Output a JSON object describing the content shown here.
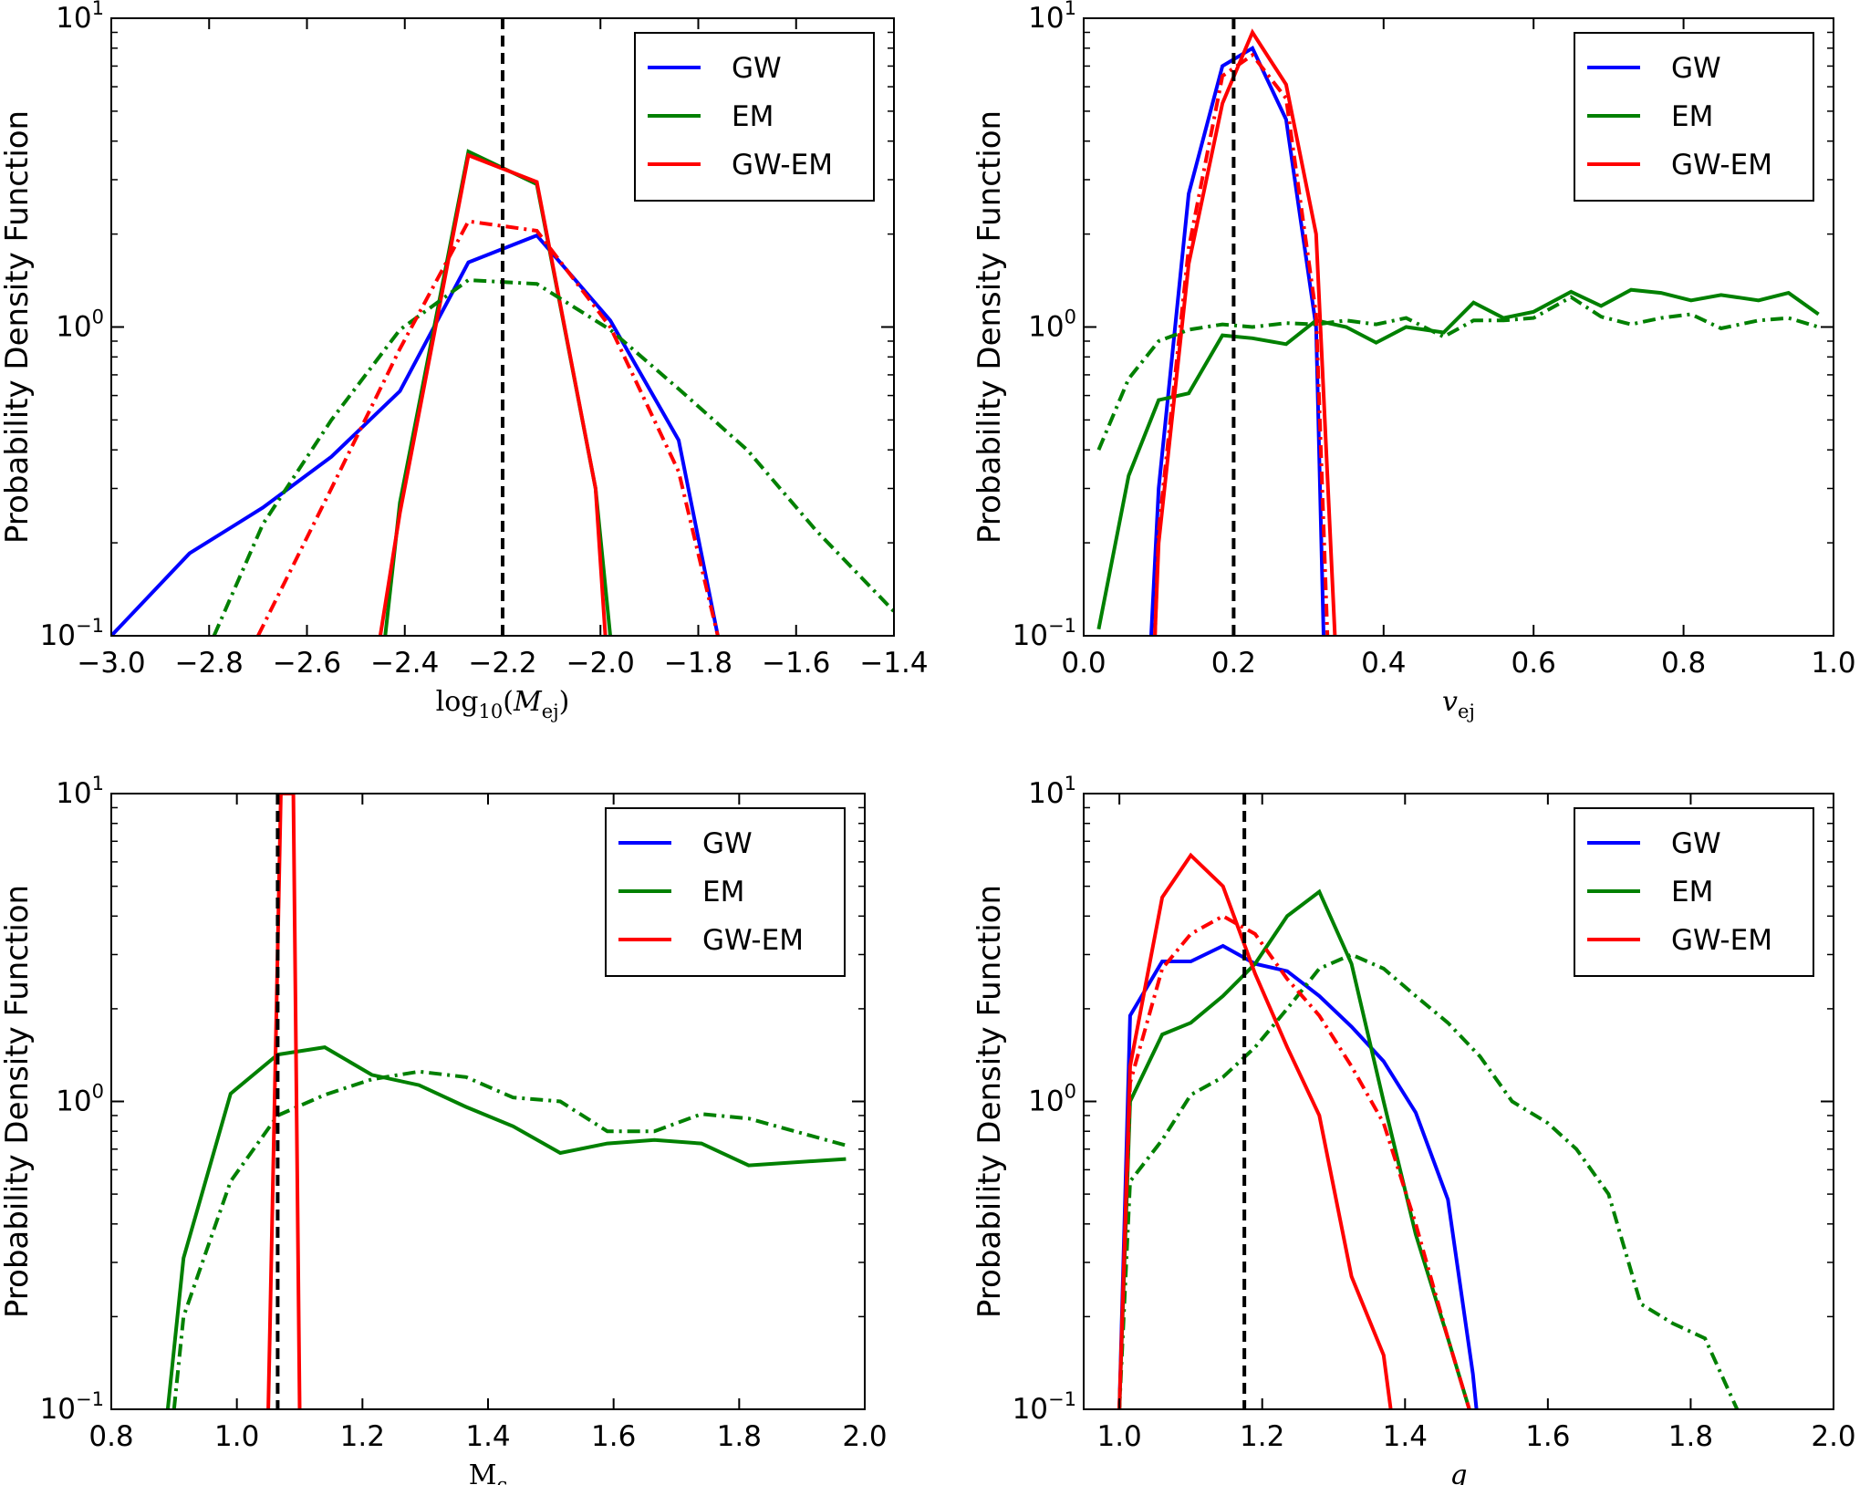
{
  "colors": {
    "GW": "#0000ff",
    "EM": "#008000",
    "GW-EM": "#ff0000",
    "truth": "#000000"
  },
  "chart_data": [
    {
      "type": "line",
      "id": "mej",
      "xlabel": "log10(Mej)",
      "ylabel": "Probability Density Function",
      "xlim": [
        -3.0,
        -1.4
      ],
      "ylim": [
        0.1,
        10
      ],
      "yscale": "log",
      "xticks": [
        -3.0,
        -2.8,
        -2.6,
        -2.4,
        -2.2,
        -2.0,
        -1.8,
        -1.6,
        -1.4
      ],
      "xtick_labels": [
        "−3.0",
        "−2.8",
        "−2.6",
        "−2.4",
        "−2.2",
        "−2.0",
        "−1.8",
        "−1.6",
        "−1.4"
      ],
      "yticks": [
        {
          "base": "10",
          "exp": "1",
          "value": 10
        },
        {
          "base": "10",
          "exp": "0",
          "value": 1
        },
        {
          "base": "10",
          "exp": "−1",
          "value": 0.1
        }
      ],
      "truth": -2.2,
      "legend": [
        "GW",
        "EM",
        "GW-EM"
      ],
      "series": [
        {
          "name": "GW",
          "style": "solid",
          "x": [
            -3.0,
            -2.84,
            -2.69,
            -2.55,
            -2.41,
            -2.27,
            -2.13,
            -1.98,
            -1.84,
            -1.76
          ],
          "y": [
            0.1,
            0.185,
            0.26,
            0.38,
            0.62,
            1.62,
            1.98,
            1.05,
            0.43,
            0.1
          ]
        },
        {
          "name": "EM",
          "style": "solid",
          "x": [
            -2.44,
            -2.41,
            -2.27,
            -2.13,
            -2.01,
            -1.98
          ],
          "y": [
            0.1,
            0.27,
            3.7,
            2.9,
            0.3,
            0.1
          ]
        },
        {
          "name": "GW-EM",
          "style": "solid",
          "x": [
            -2.45,
            -2.41,
            -2.27,
            -2.13,
            -2.01,
            -1.99
          ],
          "y": [
            0.1,
            0.25,
            3.6,
            2.95,
            0.3,
            0.1
          ]
        },
        {
          "name": "EM",
          "style": "dashdot",
          "x": [
            -2.79,
            -2.69,
            -2.55,
            -2.41,
            -2.27,
            -2.13,
            -1.98,
            -1.84,
            -1.7,
            -1.56,
            -1.4
          ],
          "y": [
            0.1,
            0.23,
            0.5,
            0.98,
            1.42,
            1.38,
            0.98,
            0.63,
            0.4,
            0.22,
            0.12
          ]
        },
        {
          "name": "GW-EM",
          "style": "dashdot",
          "x": [
            -2.7,
            -2.55,
            -2.41,
            -2.27,
            -2.13,
            -1.98,
            -1.84,
            -1.76
          ],
          "y": [
            0.1,
            0.3,
            0.85,
            2.2,
            2.05,
            1.0,
            0.34,
            0.1
          ]
        }
      ]
    },
    {
      "type": "line",
      "id": "vej",
      "xlabel": "vej",
      "ylabel": "Probability Density Function",
      "xlim": [
        0.0,
        1.0
      ],
      "ylim": [
        0.1,
        10
      ],
      "yscale": "log",
      "xticks": [
        0.0,
        0.2,
        0.4,
        0.6,
        0.8,
        1.0
      ],
      "xtick_labels": [
        "0.0",
        "0.2",
        "0.4",
        "0.6",
        "0.8",
        "1.0"
      ],
      "yticks": [
        {
          "base": "10",
          "exp": "1",
          "value": 10
        },
        {
          "base": "10",
          "exp": "0",
          "value": 1
        },
        {
          "base": "10",
          "exp": "−1",
          "value": 0.1
        }
      ],
      "truth": 0.2,
      "legend": [
        "GW",
        "EM",
        "GW-EM"
      ],
      "series": [
        {
          "name": "GW",
          "style": "solid",
          "x": [
            0.09,
            0.1,
            0.14,
            0.185,
            0.225,
            0.27,
            0.31,
            0.32
          ],
          "y": [
            0.1,
            0.3,
            2.7,
            7.0,
            8.0,
            4.7,
            1.0,
            0.1
          ]
        },
        {
          "name": "EM",
          "style": "solid",
          "x": [
            0.02,
            0.06,
            0.1,
            0.14,
            0.185,
            0.225,
            0.27,
            0.31,
            0.35,
            0.39,
            0.43,
            0.48,
            0.52,
            0.56,
            0.6,
            0.65,
            0.69,
            0.73,
            0.77,
            0.81,
            0.85,
            0.9,
            0.94,
            0.98
          ],
          "y": [
            0.105,
            0.33,
            0.58,
            0.61,
            0.94,
            0.92,
            0.88,
            1.05,
            1.0,
            0.89,
            1.0,
            0.96,
            1.2,
            1.07,
            1.12,
            1.3,
            1.17,
            1.32,
            1.29,
            1.22,
            1.27,
            1.22,
            1.29,
            1.1
          ]
        },
        {
          "name": "GW-EM",
          "style": "solid",
          "x": [
            0.095,
            0.1,
            0.14,
            0.185,
            0.225,
            0.27,
            0.31,
            0.335
          ],
          "y": [
            0.1,
            0.2,
            1.6,
            5.3,
            9.0,
            6.1,
            2.0,
            0.1
          ]
        },
        {
          "name": "EM",
          "style": "dashdot",
          "x": [
            0.02,
            0.06,
            0.1,
            0.14,
            0.185,
            0.225,
            0.27,
            0.31,
            0.35,
            0.39,
            0.43,
            0.48,
            0.52,
            0.56,
            0.6,
            0.65,
            0.69,
            0.73,
            0.77,
            0.81,
            0.85,
            0.9,
            0.94,
            0.98
          ],
          "y": [
            0.4,
            0.68,
            0.9,
            0.98,
            1.02,
            1.0,
            1.03,
            1.02,
            1.05,
            1.02,
            1.07,
            0.93,
            1.05,
            1.05,
            1.07,
            1.25,
            1.08,
            1.02,
            1.07,
            1.1,
            0.99,
            1.05,
            1.07,
            1.0
          ]
        },
        {
          "name": "GW-EM",
          "style": "dashdot",
          "x": [
            0.095,
            0.1,
            0.14,
            0.185,
            0.225,
            0.27,
            0.31,
            0.325
          ],
          "y": [
            0.1,
            0.22,
            1.8,
            6.5,
            7.6,
            5.5,
            1.1,
            0.1
          ]
        }
      ]
    },
    {
      "type": "line",
      "id": "mc",
      "xlabel": "Mc",
      "ylabel": "Probability Density Function",
      "xlim": [
        0.8,
        2.0
      ],
      "ylim": [
        0.1,
        10
      ],
      "yscale": "log",
      "xticks": [
        0.8,
        1.0,
        1.2,
        1.4,
        1.6,
        1.8,
        2.0
      ],
      "xtick_labels": [
        "0.8",
        "1.0",
        "1.2",
        "1.4",
        "1.6",
        "1.8",
        "2.0"
      ],
      "yticks": [
        {
          "base": "10",
          "exp": "1",
          "value": 10
        },
        {
          "base": "10",
          "exp": "0",
          "value": 1
        },
        {
          "base": "10",
          "exp": "−1",
          "value": 0.1
        }
      ],
      "truth": 1.065,
      "legend": [
        "GW",
        "EM",
        "GW-EM"
      ],
      "series": [
        {
          "name": "EM",
          "style": "solid",
          "x": [
            0.89,
            0.915,
            0.99,
            1.065,
            1.14,
            1.215,
            1.29,
            1.365,
            1.44,
            1.515,
            1.59,
            1.665,
            1.74,
            1.815,
            1.97
          ],
          "y": [
            0.1,
            0.31,
            1.06,
            1.42,
            1.5,
            1.22,
            1.13,
            0.96,
            0.83,
            0.68,
            0.73,
            0.75,
            0.73,
            0.62,
            0.65
          ]
        },
        {
          "name": "EM",
          "style": "dashdot",
          "x": [
            0.9,
            0.915,
            0.99,
            1.065,
            1.14,
            1.215,
            1.29,
            1.365,
            1.44,
            1.515,
            1.59,
            1.665,
            1.74,
            1.815,
            1.97
          ],
          "y": [
            0.1,
            0.2,
            0.55,
            0.9,
            1.05,
            1.18,
            1.25,
            1.2,
            1.03,
            1.0,
            0.8,
            0.8,
            0.91,
            0.88,
            0.72
          ]
        },
        {
          "name": "GW-EM",
          "style": "solid",
          "x": [
            1.05,
            1.07,
            1.09,
            1.1
          ],
          "y": [
            0.1,
            10,
            10,
            0.1
          ]
        }
      ]
    },
    {
      "type": "line",
      "id": "q",
      "xlabel": "q",
      "ylabel": "Probability Density Function",
      "xlim": [
        0.95,
        2.0
      ],
      "ylim": [
        0.1,
        10
      ],
      "yscale": "log",
      "xticks": [
        1.0,
        1.2,
        1.4,
        1.6,
        1.8,
        2.0
      ],
      "xtick_labels": [
        "1.0",
        "1.2",
        "1.4",
        "1.6",
        "1.8",
        "2.0"
      ],
      "yticks": [
        {
          "base": "10",
          "exp": "1",
          "value": 10
        },
        {
          "base": "10",
          "exp": "0",
          "value": 1
        },
        {
          "base": "10",
          "exp": "−1",
          "value": 0.1
        }
      ],
      "truth": 1.175,
      "legend": [
        "GW",
        "EM",
        "GW-EM"
      ],
      "series": [
        {
          "name": "GW",
          "style": "solid",
          "x": [
            1.0,
            1.015,
            1.06,
            1.1,
            1.145,
            1.19,
            1.235,
            1.28,
            1.325,
            1.37,
            1.415,
            1.46,
            1.495,
            1.5
          ],
          "y": [
            0.1,
            1.9,
            2.85,
            2.85,
            3.2,
            2.8,
            2.65,
            2.2,
            1.75,
            1.35,
            0.92,
            0.48,
            0.13,
            0.1
          ]
        },
        {
          "name": "EM",
          "style": "solid",
          "x": [
            1.0,
            1.015,
            1.06,
            1.1,
            1.145,
            1.19,
            1.235,
            1.28,
            1.325,
            1.37,
            1.415,
            1.46,
            1.49
          ],
          "y": [
            0.1,
            1.0,
            1.65,
            1.8,
            2.2,
            2.8,
            4.0,
            4.8,
            2.8,
            1.0,
            0.37,
            0.17,
            0.1
          ]
        },
        {
          "name": "GW-EM",
          "style": "solid",
          "x": [
            1.0,
            1.015,
            1.06,
            1.1,
            1.145,
            1.19,
            1.235,
            1.28,
            1.325,
            1.37,
            1.38
          ],
          "y": [
            0.1,
            1.3,
            4.6,
            6.3,
            5.0,
            2.6,
            1.5,
            0.9,
            0.27,
            0.15,
            0.1
          ]
        },
        {
          "name": "EM",
          "style": "dashdot",
          "x": [
            1.0,
            1.015,
            1.06,
            1.1,
            1.145,
            1.19,
            1.235,
            1.28,
            1.325,
            1.37,
            1.415,
            1.46,
            1.505,
            1.55,
            1.6,
            1.64,
            1.685,
            1.73,
            1.775,
            1.82,
            1.865
          ],
          "y": [
            0.1,
            0.55,
            0.75,
            1.05,
            1.2,
            1.5,
            2.0,
            2.7,
            3.0,
            2.7,
            2.2,
            1.8,
            1.4,
            1.0,
            0.85,
            0.7,
            0.5,
            0.22,
            0.19,
            0.17,
            0.1
          ]
        },
        {
          "name": "GW-EM",
          "style": "dashdot",
          "x": [
            1.0,
            1.015,
            1.06,
            1.1,
            1.145,
            1.19,
            1.235,
            1.28,
            1.325,
            1.37,
            1.415,
            1.46,
            1.49
          ],
          "y": [
            0.1,
            1.15,
            2.7,
            3.5,
            4.0,
            3.5,
            2.5,
            1.9,
            1.3,
            0.85,
            0.4,
            0.17,
            0.1
          ]
        }
      ]
    }
  ]
}
